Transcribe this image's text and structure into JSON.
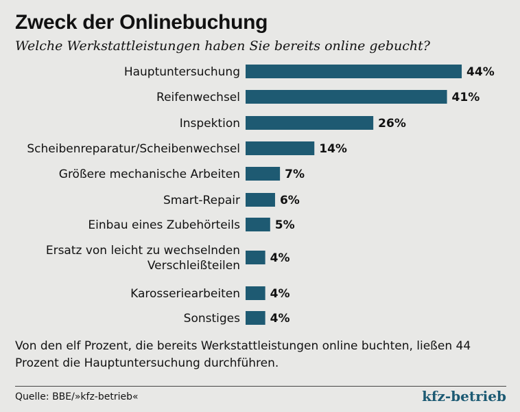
{
  "header": {
    "title": "Zweck der Onlinebuchung",
    "subtitle": "Welche Werkstattleistungen haben Sie bereits online gebucht?"
  },
  "chart_data": {
    "type": "bar",
    "orientation": "horizontal",
    "categories": [
      [
        "Hauptuntersuchung"
      ],
      [
        "Reifenwechsel"
      ],
      [
        "Inspektion"
      ],
      [
        "Scheibenreparatur/Scheibenwechsel"
      ],
      [
        "Größere mechanische Arbeiten"
      ],
      [
        "Smart-Repair"
      ],
      [
        "Einbau eines Zubehörteils"
      ],
      [
        "Ersatz von leicht zu wechselnden",
        "Verschleißteilen"
      ],
      [
        "Karosseriearbeiten"
      ],
      [
        "Sonstiges"
      ]
    ],
    "values": [
      44,
      41,
      26,
      14,
      7,
      6,
      5,
      4,
      4,
      4
    ],
    "value_labels": [
      "44%",
      "41%",
      "26%",
      "14%",
      "7%",
      "6%",
      "5%",
      "4%",
      "4%",
      "4%"
    ],
    "unit": "%",
    "bar_color": "#1e5a72",
    "grid": false
  },
  "footnote": "Von den elf Prozent, die bereits Werkstattleistungen online buchten, ließen 44 Prozent die Hauptuntersuchung durchführen.",
  "source": "Quelle: BBE/»kfz-betrieb«",
  "brand": "kfz-betrieb"
}
